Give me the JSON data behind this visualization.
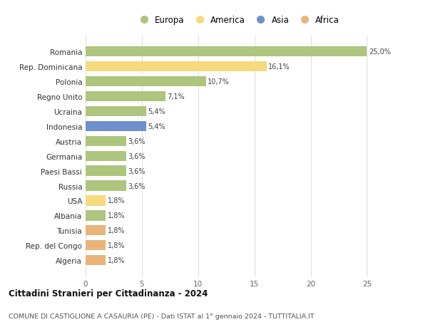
{
  "countries": [
    "Romania",
    "Rep. Dominicana",
    "Polonia",
    "Regno Unito",
    "Ucraina",
    "Indonesia",
    "Austria",
    "Germania",
    "Paesi Bassi",
    "Russia",
    "USA",
    "Albania",
    "Tunisia",
    "Rep. del Congo",
    "Algeria"
  ],
  "values": [
    25.0,
    16.1,
    10.7,
    7.1,
    5.4,
    5.4,
    3.6,
    3.6,
    3.6,
    3.6,
    1.8,
    1.8,
    1.8,
    1.8,
    1.8
  ],
  "labels": [
    "25,0%",
    "16,1%",
    "10,7%",
    "7,1%",
    "5,4%",
    "5,4%",
    "3,6%",
    "3,6%",
    "3,6%",
    "3,6%",
    "1,8%",
    "1,8%",
    "1,8%",
    "1,8%",
    "1,8%"
  ],
  "continents": [
    "Europa",
    "America",
    "Europa",
    "Europa",
    "Europa",
    "Asia",
    "Europa",
    "Europa",
    "Europa",
    "Europa",
    "America",
    "Europa",
    "Africa",
    "Africa",
    "Africa"
  ],
  "colors": {
    "Europa": "#adc57d",
    "America": "#f7d97e",
    "Asia": "#6e8fc9",
    "Africa": "#e9b47a"
  },
  "legend_order": [
    "Europa",
    "America",
    "Asia",
    "Africa"
  ],
  "title": "Cittadini Stranieri per Cittadinanza - 2024",
  "subtitle": "COMUNE DI CASTIGLIONE A CASAURIA (PE) - Dati ISTAT al 1° gennaio 2024 - TUTTITALIA.IT",
  "xlim": [
    0,
    27.0
  ],
  "xticks": [
    0,
    5,
    10,
    15,
    20,
    25
  ],
  "background_color": "#ffffff",
  "grid_color": "#e0e0e0",
  "bar_height": 0.68
}
